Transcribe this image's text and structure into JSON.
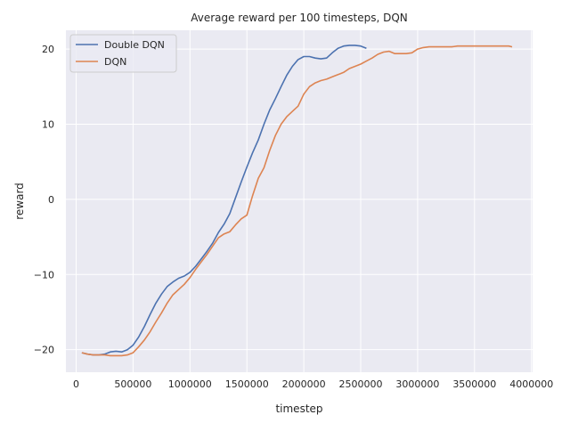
{
  "chart_data": {
    "type": "line",
    "title": "Average reward per 100 timesteps, DQN",
    "xlabel": "timestep",
    "ylabel": "reward",
    "xlim": [
      -90000,
      4010000
    ],
    "ylim": [
      -23,
      22.5
    ],
    "xticks": [
      0,
      500000,
      1000000,
      1500000,
      2000000,
      2500000,
      3000000,
      3500000,
      4000000
    ],
    "xtick_labels": [
      "0",
      "500000",
      "1000000",
      "1500000",
      "2000000",
      "2500000",
      "3000000",
      "3500000",
      "4000000"
    ],
    "yticks": [
      -20,
      -10,
      0,
      10,
      20
    ],
    "ytick_labels": [
      "−20",
      "−10",
      "0",
      "10",
      "20"
    ],
    "grid": true,
    "legend_position": "top-left",
    "series": [
      {
        "name": "Double DQN",
        "color": "#4c72b0",
        "x": [
          50000,
          100000,
          150000,
          200000,
          250000,
          300000,
          350000,
          400000,
          450000,
          500000,
          550000,
          600000,
          650000,
          700000,
          750000,
          800000,
          850000,
          900000,
          950000,
          1000000,
          1050000,
          1100000,
          1150000,
          1200000,
          1250000,
          1300000,
          1350000,
          1400000,
          1450000,
          1500000,
          1550000,
          1600000,
          1650000,
          1700000,
          1750000,
          1800000,
          1850000,
          1900000,
          1950000,
          2000000,
          2050000,
          2100000,
          2150000,
          2200000,
          2250000,
          2300000,
          2350000,
          2400000,
          2450000,
          2500000,
          2550000
        ],
        "y": [
          -20.4,
          -20.6,
          -20.7,
          -20.7,
          -20.6,
          -20.3,
          -20.2,
          -20.3,
          -20.0,
          -19.4,
          -18.3,
          -16.9,
          -15.3,
          -13.8,
          -12.6,
          -11.6,
          -11.0,
          -10.5,
          -10.2,
          -9.7,
          -8.9,
          -7.9,
          -6.9,
          -5.8,
          -4.4,
          -3.3,
          -1.9,
          0.2,
          2.3,
          4.3,
          6.2,
          7.9,
          10.0,
          11.9,
          13.4,
          15.0,
          16.5,
          17.7,
          18.6,
          19.0,
          19.0,
          18.8,
          18.7,
          18.8,
          19.5,
          20.1,
          20.4,
          20.5,
          20.5,
          20.4,
          20.1
        ]
      },
      {
        "name": "DQN",
        "color": "#dd8452",
        "x": [
          50000,
          100000,
          150000,
          200000,
          250000,
          300000,
          350000,
          400000,
          450000,
          500000,
          550000,
          600000,
          650000,
          700000,
          750000,
          800000,
          850000,
          900000,
          950000,
          1000000,
          1050000,
          1100000,
          1150000,
          1200000,
          1250000,
          1300000,
          1350000,
          1400000,
          1450000,
          1500000,
          1550000,
          1600000,
          1650000,
          1700000,
          1750000,
          1800000,
          1850000,
          1900000,
          1950000,
          2000000,
          2050000,
          2100000,
          2150000,
          2200000,
          2250000,
          2300000,
          2350000,
          2400000,
          2450000,
          2500000,
          2550000,
          2600000,
          2650000,
          2700000,
          2750000,
          2800000,
          2850000,
          2900000,
          2950000,
          3000000,
          3050000,
          3100000,
          3150000,
          3200000,
          3250000,
          3300000,
          3350000,
          3400000,
          3450000,
          3500000,
          3550000,
          3600000,
          3650000,
          3700000,
          3750000,
          3800000,
          3830000
        ],
        "y": [
          -20.4,
          -20.6,
          -20.7,
          -20.7,
          -20.7,
          -20.8,
          -20.8,
          -20.8,
          -20.7,
          -20.4,
          -19.6,
          -18.7,
          -17.6,
          -16.3,
          -15.1,
          -13.8,
          -12.7,
          -12.0,
          -11.3,
          -10.4,
          -9.3,
          -8.3,
          -7.3,
          -6.2,
          -5.1,
          -4.6,
          -4.3,
          -3.4,
          -2.6,
          -2.1,
          0.5,
          2.8,
          4.2,
          6.5,
          8.5,
          10.0,
          11.0,
          11.7,
          12.4,
          14.0,
          15.0,
          15.5,
          15.8,
          16.0,
          16.3,
          16.6,
          16.9,
          17.4,
          17.7,
          18.0,
          18.4,
          18.8,
          19.3,
          19.6,
          19.7,
          19.4,
          19.4,
          19.4,
          19.5,
          20.0,
          20.2,
          20.3,
          20.3,
          20.3,
          20.3,
          20.3,
          20.4,
          20.4,
          20.4,
          20.4,
          20.4,
          20.4,
          20.4,
          20.4,
          20.4,
          20.4,
          20.3
        ]
      }
    ]
  }
}
